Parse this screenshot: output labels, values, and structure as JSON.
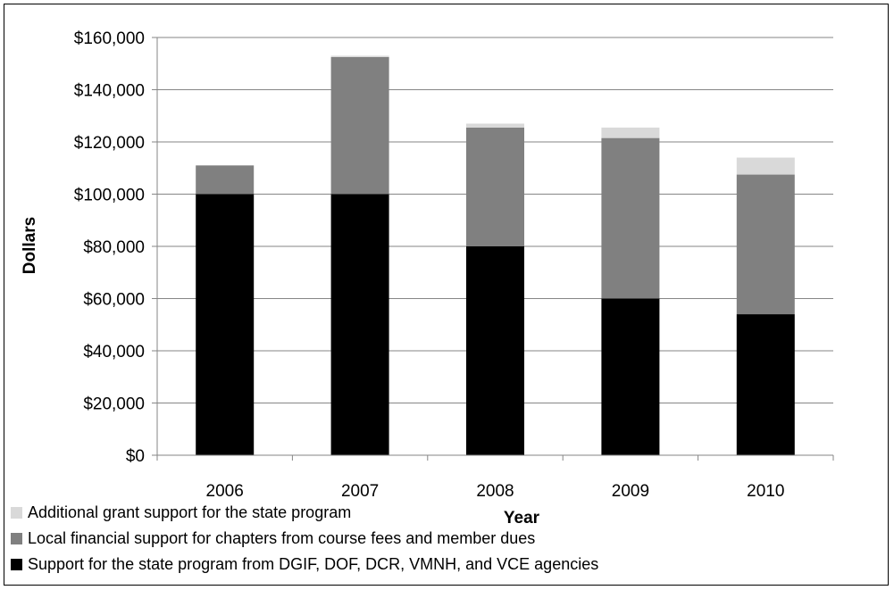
{
  "chart_data": {
    "type": "bar",
    "stacked": true,
    "title": "",
    "xlabel": "Year",
    "ylabel": "Dollars",
    "categories": [
      "2006",
      "2007",
      "2008",
      "2009",
      "2010"
    ],
    "ylim": [
      0,
      160000
    ],
    "yticks": [
      0,
      20000,
      40000,
      60000,
      80000,
      100000,
      120000,
      140000,
      160000
    ],
    "ytick_labels": [
      "$0",
      "$20,000",
      "$40,000",
      "$60,000",
      "$80,000",
      "$100,000",
      "$120,000",
      "$140,000",
      "$160,000"
    ],
    "grid": true,
    "legend_position": "bottom-left",
    "series": [
      {
        "name": "Support for the state program from DGIF, DOF, DCR, VMNH, and VCE agencies",
        "color": "#000000",
        "values": [
          100000,
          100000,
          80000,
          60000,
          54000
        ]
      },
      {
        "name": "Local financial support for chapters from course fees and member dues",
        "color": "#808080",
        "values": [
          11000,
          52500,
          45500,
          61500,
          53500
        ]
      },
      {
        "name": "Additional grant support for the state program",
        "color": "#d9d9d9",
        "values": [
          0,
          500,
          1500,
          4000,
          6500
        ]
      }
    ],
    "legend_order": [
      2,
      1,
      0
    ]
  }
}
